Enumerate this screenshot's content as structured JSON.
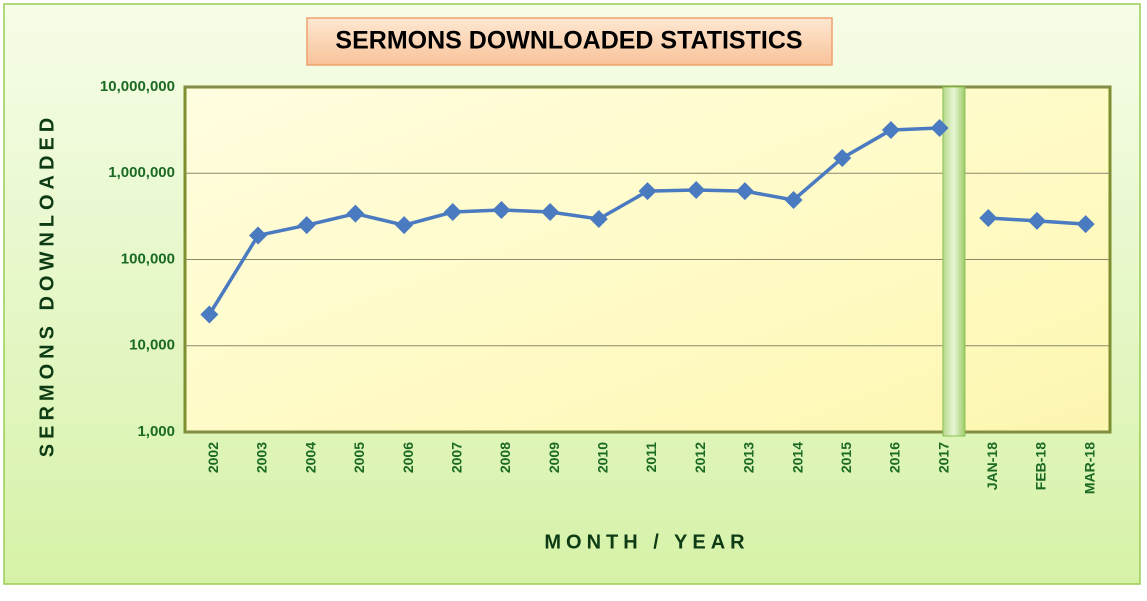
{
  "chart_data": {
    "type": "line",
    "title": "SERMONS DOWNLOADED STATISTICS",
    "y_label": "SERMONS DOWNLOADED",
    "x_label": "MONTH / YEAR",
    "categories": [
      "2002",
      "2003",
      "2004",
      "2005",
      "2006",
      "2007",
      "2008",
      "2009",
      "2010",
      "2011",
      "2012",
      "2013",
      "2014",
      "2015",
      "2016",
      "2017",
      "JAN-18",
      "FEB-18",
      "MAR-18"
    ],
    "series": [
      {
        "color": "#4a7ac0",
        "values": [
          23000,
          190000,
          250000,
          340000,
          250000,
          355000,
          375000,
          355000,
          295000,
          620000,
          640000,
          620000,
          490000,
          1500000,
          3170000,
          3350000,
          null,
          null,
          null
        ]
      },
      {
        "color": "#4a7ac0",
        "values": [
          null,
          null,
          null,
          null,
          null,
          null,
          null,
          null,
          null,
          null,
          null,
          null,
          null,
          null,
          null,
          null,
          303000,
          280000,
          257000
        ]
      }
    ],
    "log_scale": true,
    "ylim": [
      1000,
      10000000
    ],
    "yticks": [
      {
        "value": 1000,
        "label": "1,000"
      },
      {
        "value": 10000,
        "label": "10,000"
      },
      {
        "value": 100000,
        "label": "100,000"
      },
      {
        "value": 1000000,
        "label": "1,000,000"
      },
      {
        "value": 10000000,
        "label": "10,000,000"
      }
    ],
    "grid": true
  }
}
